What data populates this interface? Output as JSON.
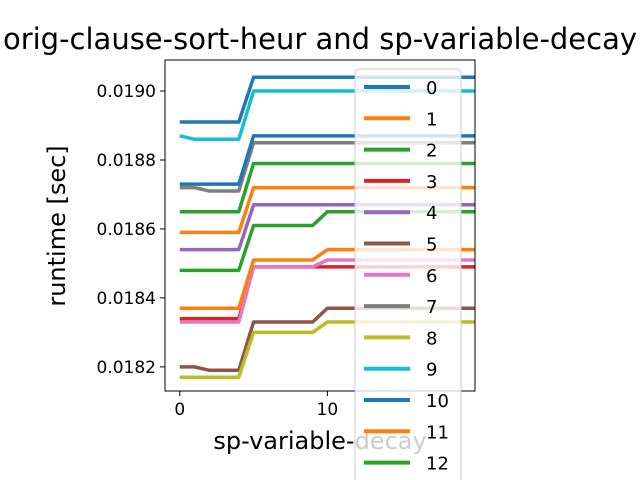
{
  "chart_data": {
    "type": "line",
    "title": "orig-clause-sort-heur and sp-variable-decay",
    "xlabel": "sp-variable-decay",
    "ylabel": "runtime [sec]",
    "xlim": [
      -1,
      20
    ],
    "ylim": [
      0.01813,
      0.01909
    ],
    "xticks": [
      0,
      10
    ],
    "yticks": [
      0.0182,
      0.0184,
      0.0186,
      0.0188,
      0.019
    ],
    "ytick_labels": [
      "0.0182",
      "0.0184",
      "0.0186",
      "0.0188",
      "0.0190"
    ],
    "grid": false,
    "legend_position": "right",
    "x": [
      0,
      1,
      2,
      3,
      4,
      5,
      6,
      7,
      8,
      9,
      10,
      11,
      12,
      13,
      14,
      15,
      16,
      17,
      18,
      19,
      20
    ],
    "series": [
      {
        "name": "0",
        "color": "#1f77b4",
        "values": [
          0.01891,
          0.01891,
          0.01891,
          0.01891,
          0.01891,
          0.01904,
          0.01904,
          0.01904,
          0.01904,
          0.01904,
          0.01904,
          0.01904,
          0.01904,
          0.01904,
          0.01904,
          0.01904,
          0.01904,
          0.01904,
          0.01904,
          0.01904,
          0.01904
        ]
      },
      {
        "name": "1",
        "color": "#ff7f0e",
        "values": [
          0.01859,
          0.01859,
          0.01859,
          0.01859,
          0.01859,
          0.01872,
          0.01872,
          0.01872,
          0.01872,
          0.01872,
          0.01872,
          0.01872,
          0.01872,
          0.01872,
          0.01872,
          0.01872,
          0.01872,
          0.01872,
          0.01872,
          0.01872,
          0.01872
        ]
      },
      {
        "name": "2",
        "color": "#2ca02c",
        "values": [
          0.01865,
          0.01865,
          0.01865,
          0.01865,
          0.01865,
          0.01879,
          0.01879,
          0.01879,
          0.01879,
          0.01879,
          0.01879,
          0.01879,
          0.01879,
          0.01879,
          0.01879,
          0.01879,
          0.01879,
          0.01879,
          0.01879,
          0.01879,
          0.01879
        ]
      },
      {
        "name": "3",
        "color": "#d62728",
        "values": [
          0.01834,
          0.01834,
          0.01834,
          0.01834,
          0.01834,
          0.01849,
          0.01849,
          0.01849,
          0.01849,
          0.01849,
          0.01849,
          0.01849,
          0.01849,
          0.01849,
          0.01849,
          0.01849,
          0.01849,
          0.01849,
          0.01849,
          0.01849,
          0.01849
        ]
      },
      {
        "name": "4",
        "color": "#9467bd",
        "values": [
          0.01854,
          0.01854,
          0.01854,
          0.01854,
          0.01854,
          0.01867,
          0.01867,
          0.01867,
          0.01867,
          0.01867,
          0.01867,
          0.01867,
          0.01867,
          0.01867,
          0.01867,
          0.01867,
          0.01867,
          0.01867,
          0.01867,
          0.01867,
          0.01867
        ]
      },
      {
        "name": "5",
        "color": "#8c564b",
        "values": [
          0.0182,
          0.0182,
          0.01819,
          0.01819,
          0.01819,
          0.01833,
          0.01833,
          0.01833,
          0.01833,
          0.01833,
          0.01837,
          0.01837,
          0.01837,
          0.01837,
          0.01837,
          0.01837,
          0.01837,
          0.01837,
          0.01837,
          0.01837,
          0.01837
        ]
      },
      {
        "name": "6",
        "color": "#e377c2",
        "values": [
          0.01833,
          0.01833,
          0.01833,
          0.01833,
          0.01833,
          0.01849,
          0.01849,
          0.01849,
          0.01849,
          0.01849,
          0.01851,
          0.01851,
          0.01851,
          0.01851,
          0.01851,
          0.01851,
          0.01851,
          0.01851,
          0.01851,
          0.01851,
          0.01851
        ]
      },
      {
        "name": "7",
        "color": "#7f7f7f",
        "values": [
          0.01872,
          0.01872,
          0.01871,
          0.01871,
          0.01871,
          0.01885,
          0.01885,
          0.01885,
          0.01885,
          0.01885,
          0.01885,
          0.01885,
          0.01885,
          0.01885,
          0.01885,
          0.01885,
          0.01885,
          0.01885,
          0.01885,
          0.01885,
          0.01885
        ]
      },
      {
        "name": "8",
        "color": "#bcbd22",
        "values": [
          0.01817,
          0.01817,
          0.01817,
          0.01817,
          0.01817,
          0.0183,
          0.0183,
          0.0183,
          0.0183,
          0.0183,
          0.01833,
          0.01833,
          0.01833,
          0.01833,
          0.01833,
          0.01833,
          0.01833,
          0.01833,
          0.01833,
          0.01833,
          0.01833
        ]
      },
      {
        "name": "9",
        "color": "#17becf",
        "values": [
          0.01887,
          0.01886,
          0.01886,
          0.01886,
          0.01886,
          0.019,
          0.019,
          0.019,
          0.019,
          0.019,
          0.019,
          0.019,
          0.019,
          0.019,
          0.019,
          0.019,
          0.019,
          0.019,
          0.019,
          0.019,
          0.019
        ]
      },
      {
        "name": "10",
        "color": "#1f77b4",
        "values": [
          0.01873,
          0.01873,
          0.01873,
          0.01873,
          0.01873,
          0.01887,
          0.01887,
          0.01887,
          0.01887,
          0.01887,
          0.01887,
          0.01887,
          0.01887,
          0.01887,
          0.01887,
          0.01887,
          0.01887,
          0.01887,
          0.01887,
          0.01887,
          0.01887
        ]
      },
      {
        "name": "11",
        "color": "#ff7f0e",
        "values": [
          0.01837,
          0.01837,
          0.01837,
          0.01837,
          0.01837,
          0.01851,
          0.01851,
          0.01851,
          0.01851,
          0.01851,
          0.01854,
          0.01854,
          0.01854,
          0.01854,
          0.01854,
          0.01854,
          0.01854,
          0.01854,
          0.01854,
          0.01854,
          0.01854
        ]
      },
      {
        "name": "12",
        "color": "#2ca02c",
        "values": [
          0.01848,
          0.01848,
          0.01848,
          0.01848,
          0.01848,
          0.01861,
          0.01861,
          0.01861,
          0.01861,
          0.01861,
          0.01865,
          0.01865,
          0.01865,
          0.01865,
          0.01865,
          0.01865,
          0.01865,
          0.01865,
          0.01865,
          0.01865,
          0.01865
        ]
      }
    ]
  }
}
